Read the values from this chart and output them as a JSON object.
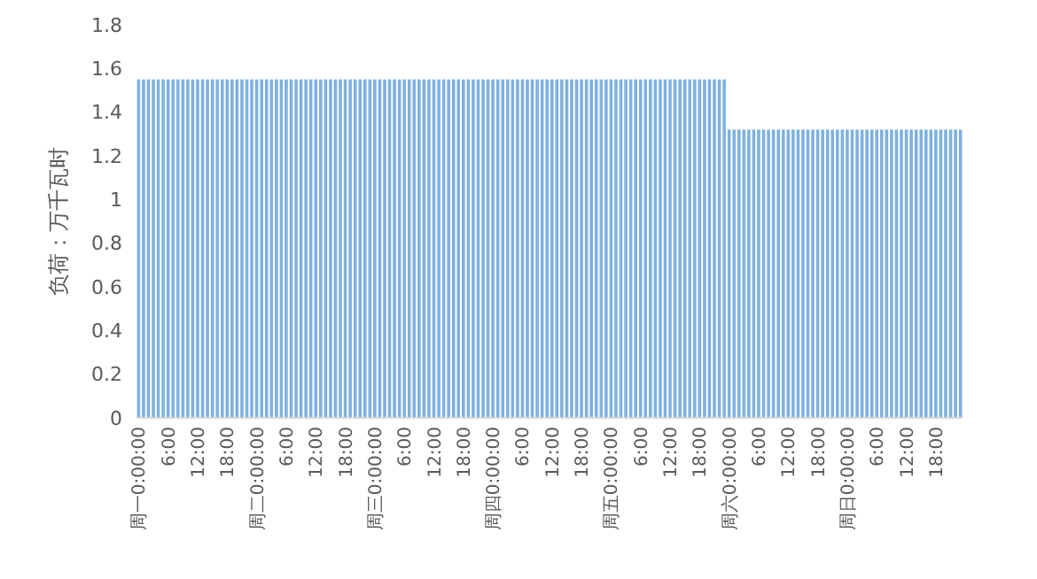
{
  "chart_data": {
    "type": "bar",
    "ylabel": "负荷：万千瓦时",
    "color": "#7fb1e0",
    "ylim": [
      0,
      1.8
    ],
    "yticks": [
      0,
      0.2,
      0.4,
      0.6,
      0.8,
      1,
      1.2,
      1.4,
      1.6,
      1.8
    ],
    "grid": false,
    "categories": [
      "周一0:00:00",
      null,
      null,
      null,
      null,
      null,
      "6:00",
      null,
      null,
      null,
      null,
      null,
      "12:00",
      null,
      null,
      null,
      null,
      null,
      "18:00",
      null,
      null,
      null,
      null,
      null,
      "周二0:00:00",
      null,
      null,
      null,
      null,
      null,
      "6:00",
      null,
      null,
      null,
      null,
      null,
      "12:00",
      null,
      null,
      null,
      null,
      null,
      "18:00",
      null,
      null,
      null,
      null,
      null,
      "周三0:00:00",
      null,
      null,
      null,
      null,
      null,
      "6:00",
      null,
      null,
      null,
      null,
      null,
      "12:00",
      null,
      null,
      null,
      null,
      null,
      "18:00",
      null,
      null,
      null,
      null,
      null,
      "周四0:00:00",
      null,
      null,
      null,
      null,
      null,
      "6:00",
      null,
      null,
      null,
      null,
      null,
      "12:00",
      null,
      null,
      null,
      null,
      null,
      "18:00",
      null,
      null,
      null,
      null,
      null,
      "周五0:00:00",
      null,
      null,
      null,
      null,
      null,
      "6:00",
      null,
      null,
      null,
      null,
      null,
      "12:00",
      null,
      null,
      null,
      null,
      null,
      "18:00",
      null,
      null,
      null,
      null,
      null,
      "周六0:00:00",
      null,
      null,
      null,
      null,
      null,
      "6:00",
      null,
      null,
      null,
      null,
      null,
      "12:00",
      null,
      null,
      null,
      null,
      null,
      "18:00",
      null,
      null,
      null,
      null,
      null,
      "周日0:00:00",
      null,
      null,
      null,
      null,
      null,
      "6:00",
      null,
      null,
      null,
      null,
      null,
      "12:00",
      null,
      null,
      null,
      null,
      null,
      "18:00",
      null,
      null,
      null,
      null,
      null
    ],
    "values": [
      1.55,
      1.55,
      1.55,
      1.55,
      1.55,
      1.55,
      1.55,
      1.55,
      1.55,
      1.55,
      1.55,
      1.55,
      1.55,
      1.55,
      1.55,
      1.55,
      1.55,
      1.55,
      1.55,
      1.55,
      1.55,
      1.55,
      1.55,
      1.55,
      1.55,
      1.55,
      1.55,
      1.55,
      1.55,
      1.55,
      1.55,
      1.55,
      1.55,
      1.55,
      1.55,
      1.55,
      1.55,
      1.55,
      1.55,
      1.55,
      1.55,
      1.55,
      1.55,
      1.55,
      1.55,
      1.55,
      1.55,
      1.55,
      1.55,
      1.55,
      1.55,
      1.55,
      1.55,
      1.55,
      1.55,
      1.55,
      1.55,
      1.55,
      1.55,
      1.55,
      1.55,
      1.55,
      1.55,
      1.55,
      1.55,
      1.55,
      1.55,
      1.55,
      1.55,
      1.55,
      1.55,
      1.55,
      1.55,
      1.55,
      1.55,
      1.55,
      1.55,
      1.55,
      1.55,
      1.55,
      1.55,
      1.55,
      1.55,
      1.55,
      1.55,
      1.55,
      1.55,
      1.55,
      1.55,
      1.55,
      1.55,
      1.55,
      1.55,
      1.55,
      1.55,
      1.55,
      1.55,
      1.55,
      1.55,
      1.55,
      1.55,
      1.55,
      1.55,
      1.55,
      1.55,
      1.55,
      1.55,
      1.55,
      1.55,
      1.55,
      1.55,
      1.55,
      1.55,
      1.55,
      1.55,
      1.55,
      1.55,
      1.55,
      1.55,
      1.55,
      1.32,
      1.32,
      1.32,
      1.32,
      1.32,
      1.32,
      1.32,
      1.32,
      1.32,
      1.32,
      1.32,
      1.32,
      1.32,
      1.32,
      1.32,
      1.32,
      1.32,
      1.32,
      1.32,
      1.32,
      1.32,
      1.32,
      1.32,
      1.32,
      1.32,
      1.32,
      1.32,
      1.32,
      1.32,
      1.32,
      1.32,
      1.32,
      1.32,
      1.32,
      1.32,
      1.32,
      1.32,
      1.32,
      1.32,
      1.32,
      1.32,
      1.32,
      1.32,
      1.32,
      1.32,
      1.32,
      1.32,
      1.32
    ]
  }
}
